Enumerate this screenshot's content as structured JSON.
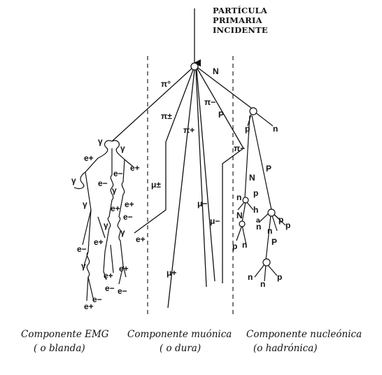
{
  "header": {
    "line1": "PARTÍCULA",
    "line2": "PRIMARIA",
    "line3": "INCIDENTE"
  },
  "captions": {
    "emg_title": "Componente EMG",
    "emg_sub": "( o blanda)",
    "muon_title": "Componente muónica",
    "muon_sub": "( o dura)",
    "nucleon_title": "Componente nucleónica",
    "nucleon_sub": "(o hadrónica)"
  },
  "labels": {
    "pi0": "π°",
    "pi_pm": "π±",
    "pi_plus": "π+",
    "pi_minus": "π−",
    "N": "N",
    "P": "P",
    "n": "n",
    "p": "p",
    "h": "h",
    "a": "a",
    "gamma": "γ",
    "e_plus": "e+",
    "e_minus": "e−",
    "mu_pm": "μ±",
    "mu_minus": "μ−",
    "mu_plus": "μ+"
  }
}
